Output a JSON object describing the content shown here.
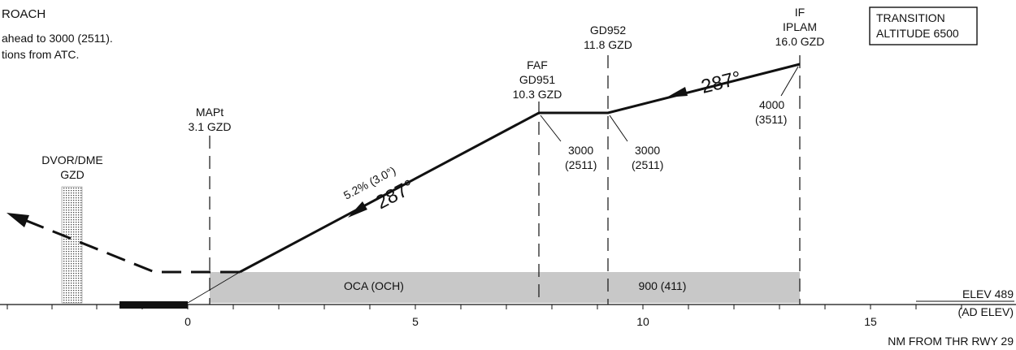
{
  "notes": {
    "heading": "ROACH",
    "line1": "ahead to 3000 (2511).",
    "line2": "tions from ATC."
  },
  "transition_box": {
    "line1": "TRANSITION",
    "line2": "ALTITUDE 6500"
  },
  "fixes": {
    "if": {
      "line1": "IF",
      "line2": "IPLAM",
      "line3": "16.0 GZD",
      "alt": "4000",
      "alt_height": "(3511)"
    },
    "gd952": {
      "line1": "GD952",
      "line2": "11.8 GZD",
      "alt": "3000",
      "alt_height": "(2511)"
    },
    "faf": {
      "line1": "FAF",
      "line2": "GD951",
      "line3": "10.3 GZD",
      "alt": "3000",
      "alt_height": "(2511)"
    },
    "mapt": {
      "line1": "MAPt",
      "line2": "3.1 GZD"
    },
    "dvor": {
      "line1": "DVOR/DME",
      "line2": "GZD"
    }
  },
  "tracks": {
    "intermediate": "287°",
    "final": "287°",
    "gradient": "5.2% (3.0°)"
  },
  "oca": {
    "label": "OCA (OCH)",
    "value": "900 (411)"
  },
  "axis": {
    "ticks": [
      "0",
      "5",
      "10",
      "15"
    ],
    "elev": "ELEV 489",
    "ad_elev": "(AD ELEV)",
    "caption": "NM FROM THR RWY 29"
  },
  "colors": {
    "ink": "#111111",
    "oca_fill": "#c8c8c8"
  }
}
